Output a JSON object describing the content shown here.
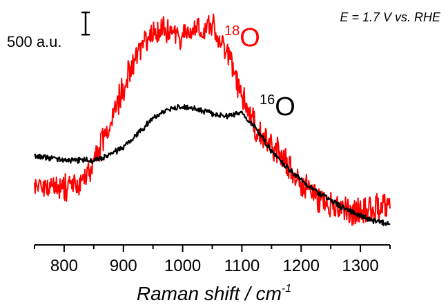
{
  "chart_data": {
    "type": "line",
    "title": "",
    "xlabel": "Raman shift / cm",
    "xlabel_sup": "-1",
    "ylabel": "",
    "xlim": [
      750,
      1350
    ],
    "ylim": [
      0,
      5200
    ],
    "x_ticks": [
      800,
      900,
      1000,
      1100,
      1200,
      1300
    ],
    "y_ticks_visible": false,
    "grid": false,
    "legend": "none (inline labels)",
    "annotations": {
      "condition": "E = 1.7 V vs. RHE",
      "scale_bar_label": "500 a.u.",
      "scale_bar_value": 500
    },
    "series": [
      {
        "label_sup": "18",
        "label_main": "O",
        "color": "#ff0000",
        "x": [
          750,
          775,
          800,
          825,
          850,
          875,
          900,
          925,
          950,
          975,
          1000,
          1025,
          1050,
          1075,
          1100,
          1125,
          1150,
          1175,
          1200,
          1225,
          1250,
          1275,
          1300,
          1325,
          1350
        ],
        "y": [
          1200,
          1150,
          1100,
          1150,
          1700,
          2450,
          3400,
          4200,
          4650,
          4700,
          4550,
          4700,
          4800,
          4150,
          3250,
          2400,
          2050,
          1700,
          1250,
          950,
          750,
          600,
          600,
          700,
          800
        ],
        "noise": 280
      },
      {
        "label_sup": "16",
        "label_main": "O",
        "color": "#000000",
        "x": [
          750,
          775,
          800,
          825,
          850,
          875,
          900,
          925,
          950,
          975,
          1000,
          1025,
          1050,
          1075,
          1100,
          1125,
          1150,
          1175,
          1200,
          1225,
          1250,
          1275,
          1300,
          1325,
          1350
        ],
        "y": [
          1850,
          1800,
          1750,
          1750,
          1750,
          1850,
          2050,
          2350,
          2700,
          2900,
          2950,
          2900,
          2800,
          2750,
          2800,
          2450,
          1950,
          1600,
          1300,
          1050,
          850,
          650,
          500,
          380,
          300
        ],
        "noise": 55
      }
    ]
  }
}
